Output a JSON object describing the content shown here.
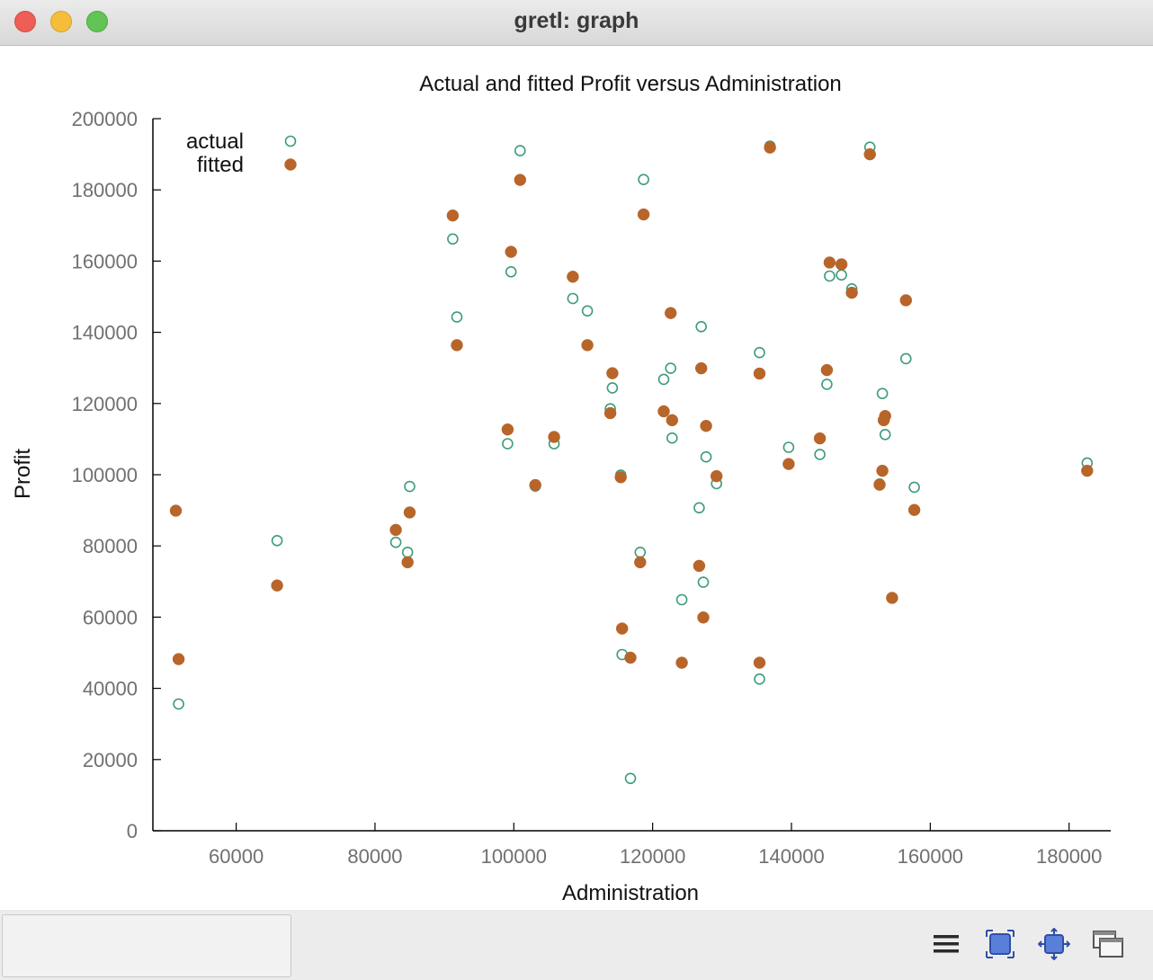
{
  "window": {
    "title": "gretl: graph"
  },
  "toolbar": {
    "icons": [
      "menu-icon",
      "zoom-icon",
      "fit-icon",
      "windows-icon"
    ]
  },
  "colors": {
    "actual": "#3c9c78",
    "fitted": "#b8652a",
    "axis_text": "#707070"
  },
  "chart_data": {
    "type": "scatter",
    "title": "Actual and fitted Profit versus Administration",
    "xlabel": "Administration",
    "ylabel": "Profit",
    "xlim": [
      48000,
      186000
    ],
    "ylim": [
      0,
      200000
    ],
    "xticks": [
      60000,
      80000,
      100000,
      120000,
      140000,
      160000,
      180000
    ],
    "yticks": [
      0,
      20000,
      40000,
      60000,
      80000,
      100000,
      120000,
      140000,
      160000,
      180000,
      200000
    ],
    "legend": "top-left",
    "grid": false,
    "series": [
      {
        "name": "actual",
        "marker": "open-circle",
        "points": [
          [
            51700,
            35600
          ],
          [
            65900,
            81500
          ],
          [
            83000,
            81000
          ],
          [
            84700,
            78200
          ],
          [
            85000,
            96700
          ],
          [
            91200,
            166200
          ],
          [
            91800,
            144300
          ],
          [
            99100,
            108700
          ],
          [
            99600,
            157000
          ],
          [
            100900,
            191000
          ],
          [
            103100,
            96800
          ],
          [
            105800,
            108700
          ],
          [
            108500,
            149500
          ],
          [
            110600,
            146000
          ],
          [
            113900,
            118500
          ],
          [
            114200,
            124400
          ],
          [
            115400,
            99900
          ],
          [
            115600,
            49500
          ],
          [
            116800,
            14700
          ],
          [
            118200,
            78200
          ],
          [
            118700,
            182900
          ],
          [
            121600,
            126800
          ],
          [
            122600,
            129900
          ],
          [
            122800,
            110300
          ],
          [
            124200,
            64900
          ],
          [
            126700,
            90700
          ],
          [
            127000,
            141600
          ],
          [
            127300,
            69800
          ],
          [
            127700,
            105000
          ],
          [
            129200,
            97500
          ],
          [
            135400,
            134300
          ],
          [
            135400,
            42600
          ],
          [
            136900,
            192300
          ],
          [
            139600,
            107700
          ],
          [
            144100,
            105700
          ],
          [
            145100,
            125400
          ],
          [
            145500,
            155800
          ],
          [
            147200,
            156100
          ],
          [
            148700,
            152200
          ],
          [
            151300,
            192000
          ],
          [
            152700,
            97400
          ],
          [
            153100,
            122800
          ],
          [
            153500,
            111300
          ],
          [
            156500,
            132600
          ],
          [
            157700,
            96500
          ],
          [
            182600,
            103300
          ]
        ]
      },
      {
        "name": "fitted",
        "marker": "filled-circle",
        "points": [
          [
            51300,
            89900
          ],
          [
            51700,
            48200
          ],
          [
            65900,
            68900
          ],
          [
            83000,
            84500
          ],
          [
            84700,
            75400
          ],
          [
            85000,
            89400
          ],
          [
            91200,
            172800
          ],
          [
            91800,
            136400
          ],
          [
            99100,
            112700
          ],
          [
            99600,
            162600
          ],
          [
            100900,
            182800
          ],
          [
            103100,
            97100
          ],
          [
            105800,
            110600
          ],
          [
            108500,
            155600
          ],
          [
            110600,
            136400
          ],
          [
            113900,
            117300
          ],
          [
            114200,
            128500
          ],
          [
            115400,
            99300
          ],
          [
            115600,
            56800
          ],
          [
            116800,
            48600
          ],
          [
            118200,
            75400
          ],
          [
            118700,
            173100
          ],
          [
            121600,
            117800
          ],
          [
            122600,
            145400
          ],
          [
            122800,
            115300
          ],
          [
            124200,
            47200
          ],
          [
            126700,
            74400
          ],
          [
            127000,
            129900
          ],
          [
            127300,
            59900
          ],
          [
            127700,
            113700
          ],
          [
            129200,
            99600
          ],
          [
            135400,
            128400
          ],
          [
            135400,
            47200
          ],
          [
            136900,
            191900
          ],
          [
            139600,
            103000
          ],
          [
            144100,
            110200
          ],
          [
            145100,
            129400
          ],
          [
            145500,
            159600
          ],
          [
            147200,
            159100
          ],
          [
            148700,
            151100
          ],
          [
            151300,
            190000
          ],
          [
            152700,
            97200
          ],
          [
            153100,
            101100
          ],
          [
            153300,
            115300
          ],
          [
            153500,
            116500
          ],
          [
            154500,
            65400
          ],
          [
            156500,
            149000
          ],
          [
            157700,
            90100
          ],
          [
            182600,
            101100
          ]
        ]
      }
    ]
  }
}
